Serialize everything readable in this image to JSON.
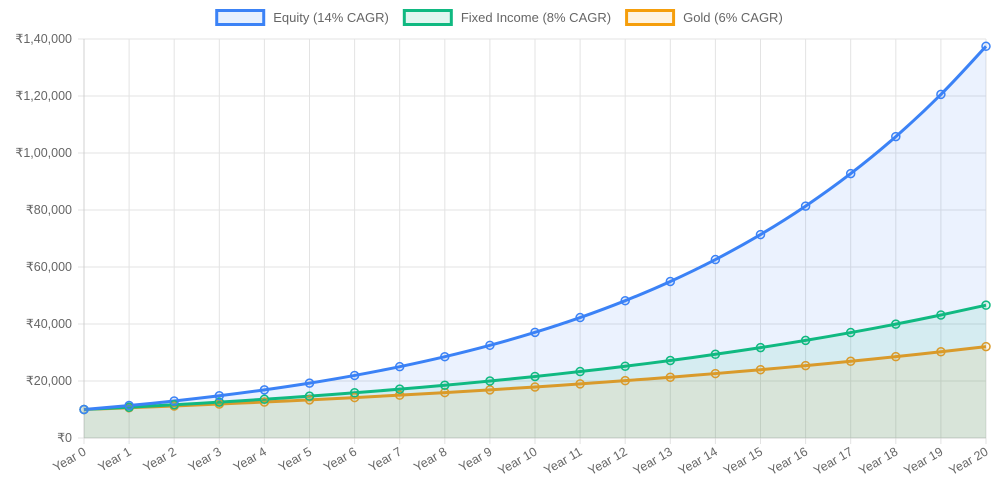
{
  "chart_data": {
    "type": "line",
    "title": "",
    "xlabel": "",
    "ylabel": "",
    "legend_position": "top",
    "grid": true,
    "categories": [
      "Year 0",
      "Year 1",
      "Year 2",
      "Year 3",
      "Year 4",
      "Year 5",
      "Year 6",
      "Year 7",
      "Year 8",
      "Year 9",
      "Year 10",
      "Year 11",
      "Year 12",
      "Year 13",
      "Year 14",
      "Year 15",
      "Year 16",
      "Year 17",
      "Year 18",
      "Year 19",
      "Year 20"
    ],
    "ylim": [
      0,
      140000
    ],
    "y_ticks": [
      0,
      20000,
      40000,
      60000,
      80000,
      100000,
      120000,
      140000
    ],
    "y_tick_labels": [
      "₹0",
      "₹20,000",
      "₹40,000",
      "₹60,000",
      "₹80,000",
      "₹1,00,000",
      "₹1,20,000",
      "₹1,40,000"
    ],
    "series": [
      {
        "name": "Equity (14% CAGR)",
        "color": "#3b82f6",
        "fill": "rgba(59,130,246,0.1)",
        "values": [
          10000,
          11400,
          12996,
          14815,
          16890,
          19254,
          21950,
          25023,
          28526,
          32519,
          37072,
          42262,
          48179,
          54924,
          62613,
          71379,
          81372,
          92765,
          105752,
          120557,
          137435
        ]
      },
      {
        "name": "Fixed Income (8% CAGR)",
        "color": "#10b981",
        "fill": "rgba(16,185,129,0.1)",
        "values": [
          10000,
          10800,
          11664,
          12597,
          13605,
          14693,
          15869,
          17138,
          18509,
          19990,
          21589,
          23316,
          25182,
          27196,
          29372,
          31722,
          34259,
          37000,
          39960,
          43157,
          46610
        ]
      },
      {
        "name": "Gold (6% CAGR)",
        "color": "#d99a2b",
        "legend_color": "#f59e0b",
        "fill": "rgba(245,158,11,0.1)",
        "values": [
          10000,
          10600,
          11236,
          11910,
          12625,
          13382,
          14185,
          15036,
          15938,
          16895,
          17908,
          18983,
          20122,
          21329,
          22609,
          23966,
          25404,
          26928,
          28543,
          30256,
          32071
        ]
      }
    ]
  }
}
